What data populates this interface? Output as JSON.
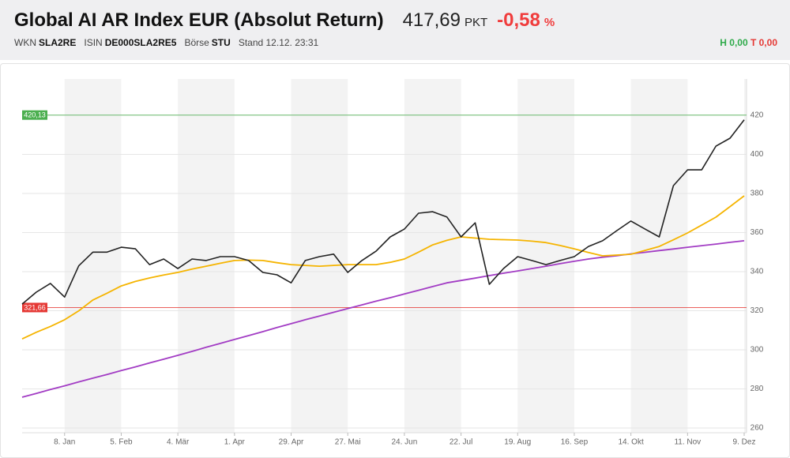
{
  "header": {
    "title": "Global AI AR Index EUR (Absolut Return)",
    "price": "417,69",
    "unit": "PKT",
    "change": "-0,58",
    "change_unit": "%",
    "meta": [
      {
        "label": "WKN",
        "value": "SLA2RE"
      },
      {
        "label": "ISIN",
        "value": "DE000SLA2RE5"
      },
      {
        "label": "Börse",
        "value": "STU"
      }
    ],
    "stand": "Stand 12.12. 23:31",
    "high": "H 0,00",
    "low": "T 0,00"
  },
  "chart_data": {
    "type": "line",
    "categories": [
      null,
      null,
      null,
      "8. Jan",
      null,
      null,
      null,
      "5. Feb",
      null,
      null,
      null,
      "4. Mär",
      null,
      null,
      null,
      "1. Apr",
      null,
      null,
      null,
      "29. Apr",
      null,
      null,
      null,
      "27. Mai",
      null,
      null,
      null,
      "24. Jun",
      null,
      null,
      null,
      "22. Jul",
      null,
      null,
      null,
      "19. Aug",
      null,
      null,
      null,
      "16. Sep",
      null,
      null,
      null,
      "14. Okt",
      null,
      null,
      null,
      "11. Nov",
      null,
      null,
      null,
      "9. Dez"
    ],
    "series": [
      {
        "color": "#a23cc4",
        "values": [
          275.8,
          277.7,
          279.7,
          281.6,
          283.6,
          285.5,
          287.4,
          289.4,
          291.3,
          293.3,
          295.2,
          297.2,
          299.2,
          301.3,
          303.3,
          305.3,
          307.3,
          309.3,
          311.4,
          313.4,
          315.4,
          317.3,
          319.2,
          321.1,
          323,
          324.9,
          326.7,
          328.6,
          330.5,
          332.4,
          334.3,
          335.5,
          336.7,
          338,
          339.2,
          340.4,
          341.6,
          342.8,
          344.1,
          345.3,
          346.5,
          347.4,
          348.2,
          349.1,
          349.9,
          350.8,
          351.6,
          352.5,
          353.3,
          354.1,
          355,
          355.8
        ]
      },
      {
        "color": "#f5b400",
        "values": [
          305.6,
          309,
          312,
          315.4,
          320,
          325.5,
          329,
          332.7,
          335,
          336.8,
          338.3,
          339.6,
          341.3,
          342.8,
          344.3,
          345.7,
          345.9,
          345.7,
          344.6,
          343.6,
          343.2,
          342.8,
          343.2,
          343.6,
          343.6,
          343.6,
          344.8,
          346.5,
          350,
          353.7,
          356,
          357.8,
          357.2,
          356.6,
          356.4,
          356.2,
          355.6,
          354.9,
          353.4,
          351.7,
          349.8,
          348.1,
          348.5,
          348.9,
          350.9,
          352.9,
          356.3,
          359.8,
          363.8,
          367.9,
          373.3,
          378.8
        ]
      },
      {
        "color": "#222222",
        "values": [
          323.4,
          329.5,
          334,
          327,
          343,
          350,
          350,
          352.5,
          351.7,
          343.6,
          346.5,
          341.6,
          346.5,
          345.7,
          347.7,
          347.7,
          345.7,
          339.6,
          338.4,
          334.3,
          345.7,
          347.7,
          349,
          339.6,
          345.7,
          350.5,
          357.8,
          361.8,
          369.9,
          370.7,
          368,
          357.8,
          365,
          333.5,
          341.6,
          347.7,
          345.7,
          343.6,
          345.7,
          347.7,
          352.9,
          355.8,
          361,
          365.9,
          361.8,
          357.8,
          384,
          392.1,
          392.1,
          404.2,
          408.3,
          417.69
        ]
      }
    ],
    "reference_lines": [
      {
        "value": 420.13,
        "label": "420,13",
        "color": "#4caf50"
      },
      {
        "value": 321.66,
        "label": "321,66",
        "color": "#e53935"
      }
    ],
    "ylim": [
      257.6,
      438.6
    ],
    "yticks": [
      260,
      280,
      300,
      320,
      340,
      360,
      380,
      400,
      420
    ],
    "grid": true
  }
}
